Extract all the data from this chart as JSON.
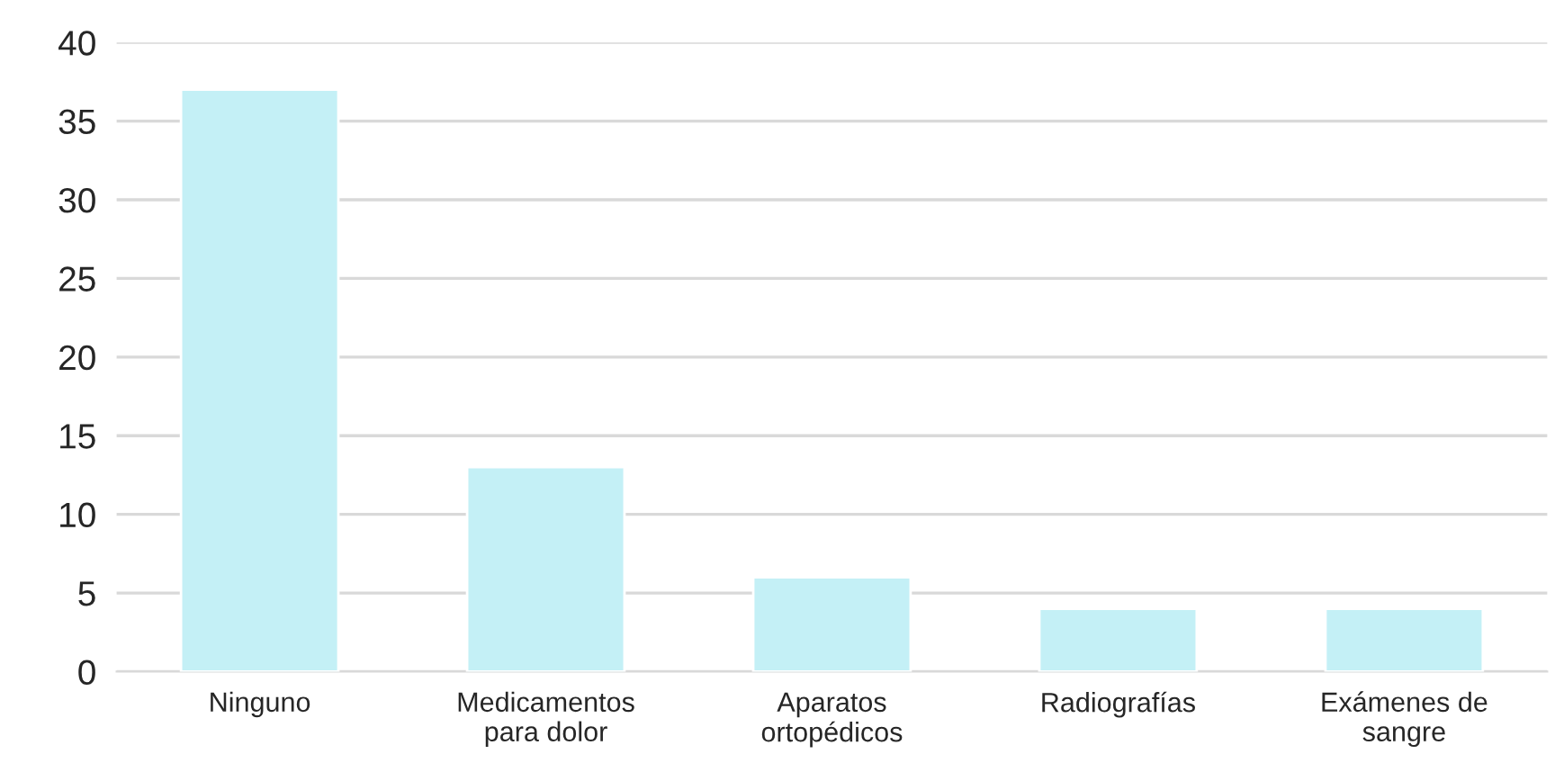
{
  "chart_data": {
    "type": "bar",
    "categories": [
      "Ninguno",
      "Medicamentos\npara dolor",
      "Aparatos\nortopédicos",
      "Radiografías",
      "Exámenes de\nsangre"
    ],
    "values": [
      37,
      13,
      6,
      4,
      4
    ],
    "color": "#c4f0f6",
    "ylim": [
      0,
      40
    ],
    "yticks": [
      0,
      5,
      10,
      15,
      20,
      25,
      30,
      35,
      40
    ],
    "grid": "y",
    "legend": false
  }
}
